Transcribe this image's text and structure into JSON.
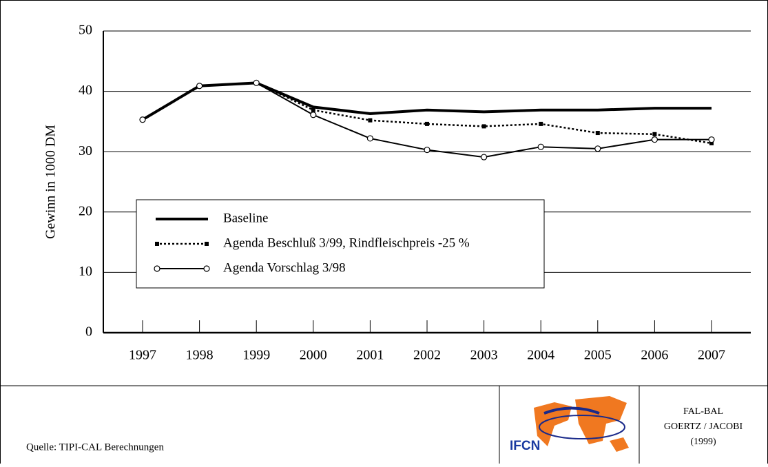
{
  "chart_data": {
    "type": "line",
    "y_label": "Gewinn in 1000 DM",
    "categories": [
      "1997",
      "1998",
      "1999",
      "2000",
      "2001",
      "2002",
      "2003",
      "2004",
      "2005",
      "2006",
      "2007"
    ],
    "ylim": [
      0,
      50
    ],
    "yticks": [
      0,
      10,
      20,
      30,
      40,
      50
    ],
    "grid": true,
    "series": [
      {
        "name": "Baseline",
        "color": "#000000",
        "values": [
          35.3,
          40.9,
          41.4,
          37.4,
          36.3,
          36.9,
          36.6,
          36.9,
          36.9,
          37.2,
          37.2
        ]
      },
      {
        "name": "Agenda Beschluß 3/99, Rindfleischpreis -25 %",
        "color": "#000000",
        "values": [
          35.3,
          40.9,
          41.4,
          36.9,
          35.2,
          34.6,
          34.2,
          34.6,
          33.1,
          32.9,
          31.4
        ]
      },
      {
        "name": "Agenda Vorschlag 3/98",
        "color": "#000000",
        "values": [
          35.3,
          40.9,
          41.4,
          36.1,
          32.2,
          30.3,
          29.1,
          30.8,
          30.5,
          32.0,
          32.0
        ]
      }
    ]
  },
  "footer": {
    "source": "Quelle: TIPI-CAL Berechnungen",
    "credit": [
      "FAL-BAL",
      "GOERTZ / JACOBI",
      "(1999)"
    ],
    "logo": "IFCN"
  }
}
